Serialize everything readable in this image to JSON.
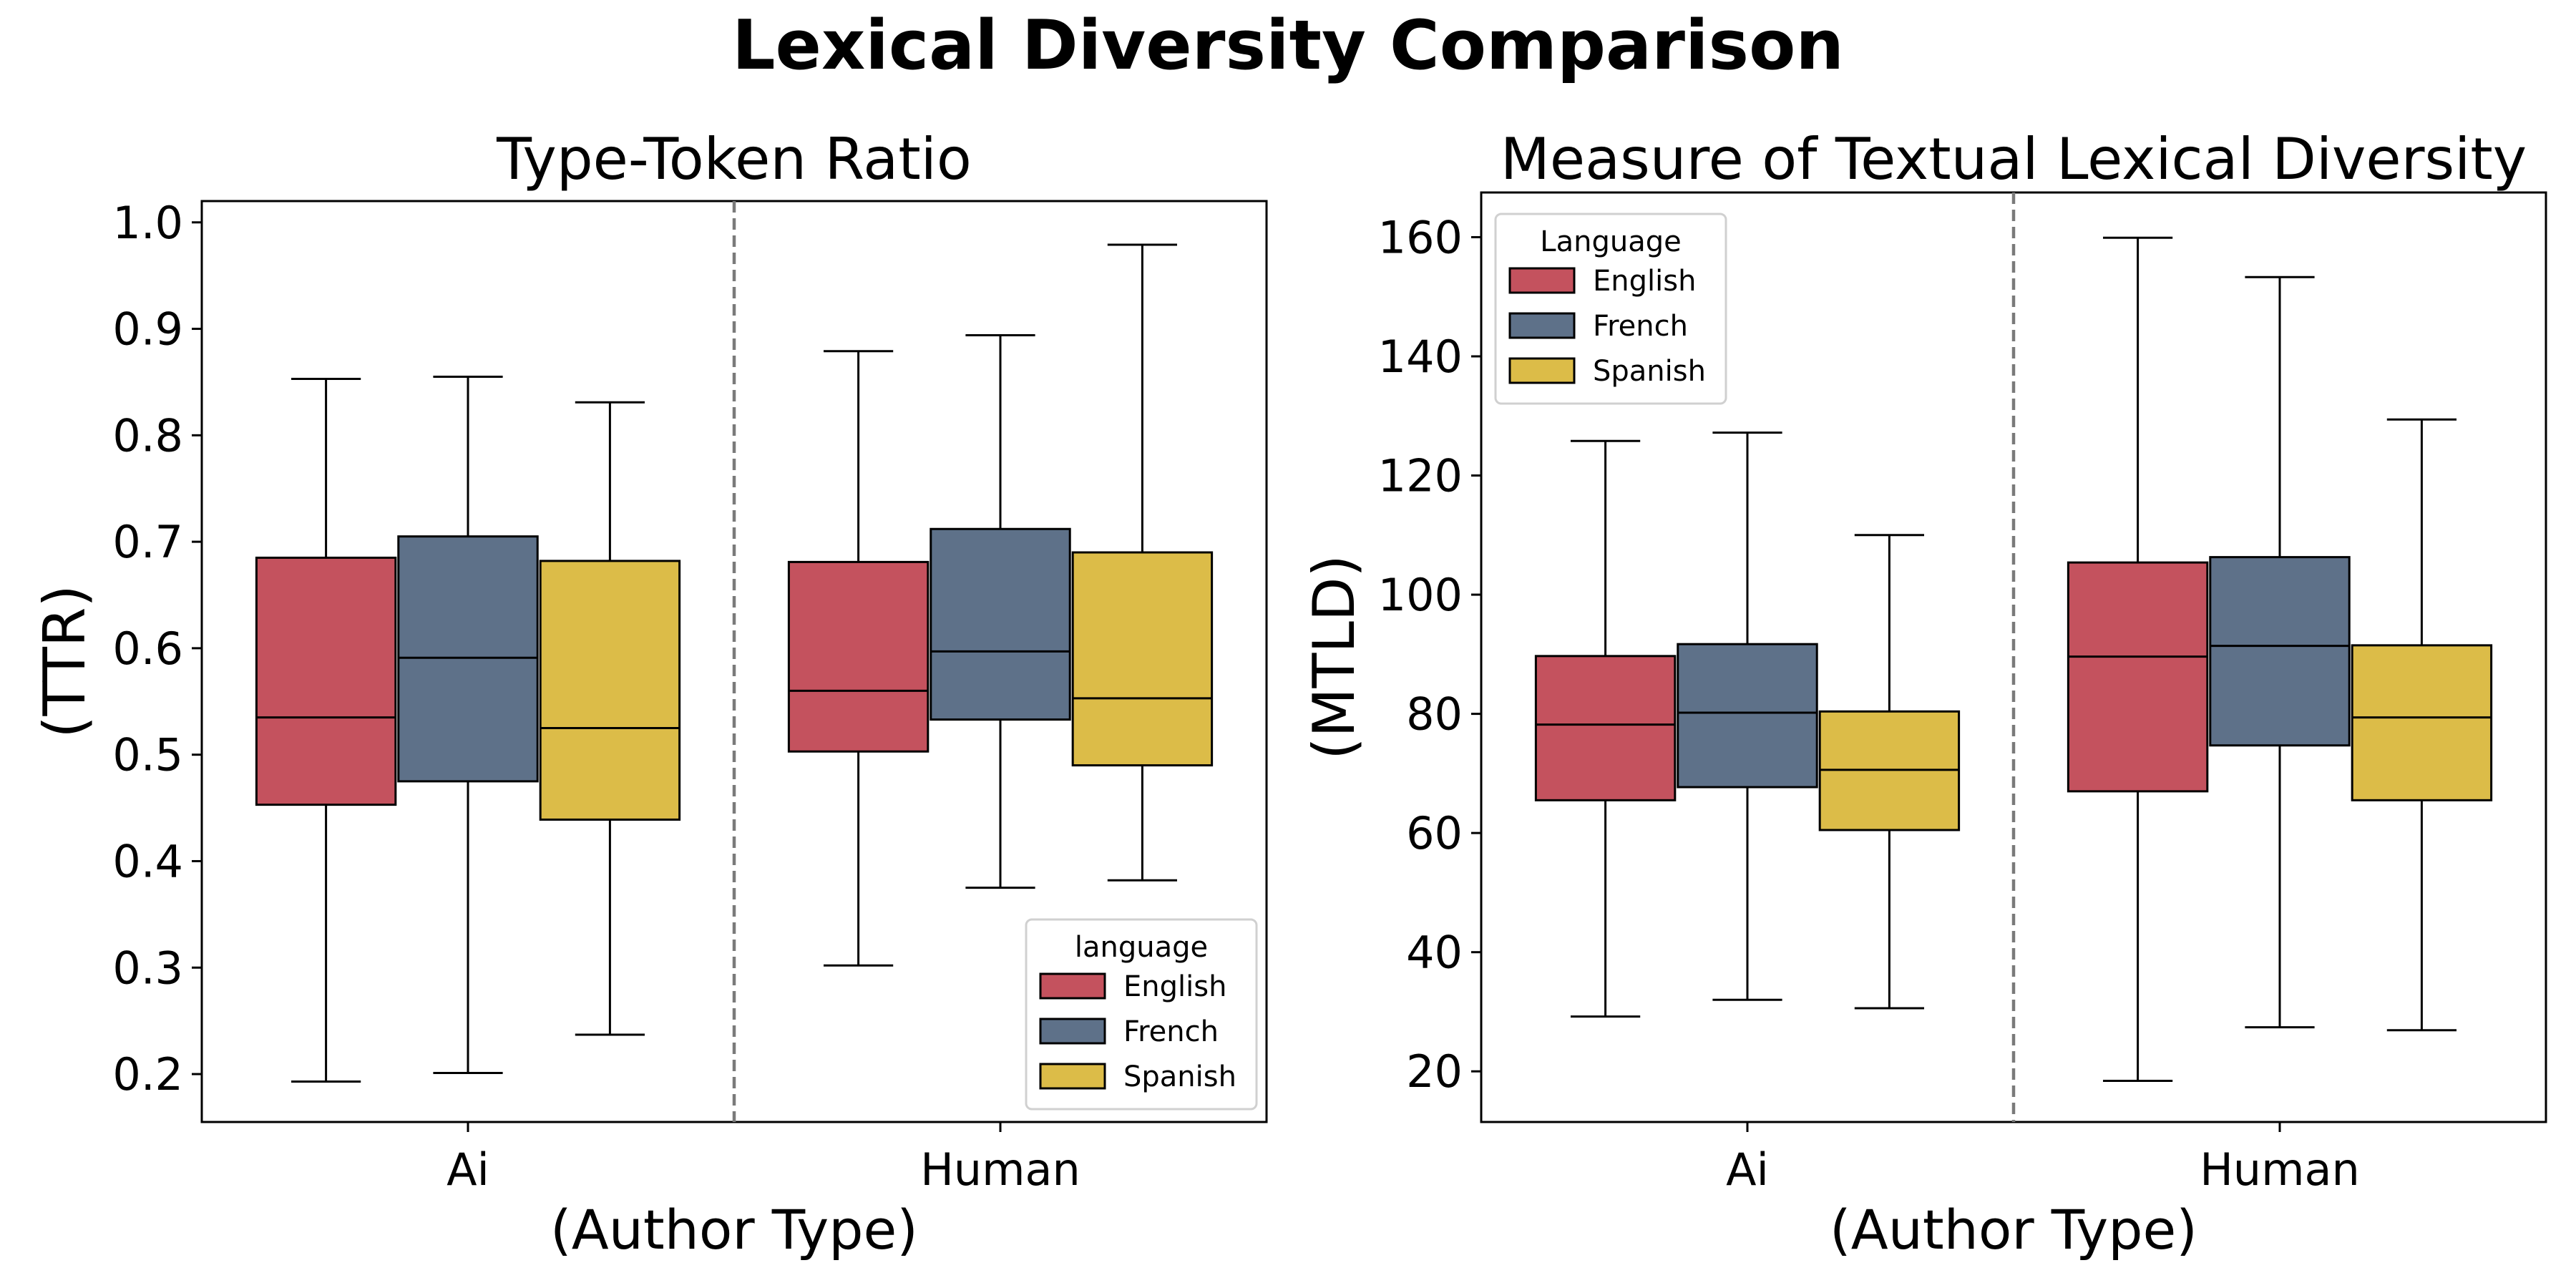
{
  "figure_title": "Lexical Diversity Comparison",
  "chart_data": [
    {
      "type": "box",
      "title": "Type-Token Ratio",
      "xlabel": "(Author Type)",
      "ylabel": "(TTR)",
      "categories": [
        "Ai",
        "Human"
      ],
      "ylim": [
        0.155,
        1.02
      ],
      "yticks": [
        0.2,
        0.3,
        0.4,
        0.5,
        0.6,
        0.7,
        0.8,
        0.9,
        1.0
      ],
      "ytick_labels": [
        "0.2",
        "0.3",
        "0.4",
        "0.5",
        "0.6",
        "0.7",
        "0.8",
        "0.9",
        "1.0"
      ],
      "legend": {
        "title": "language",
        "position": "lower right",
        "entries": [
          "English",
          "French",
          "Spanish"
        ]
      },
      "series": [
        {
          "name": "English",
          "color": "#C4525E",
          "boxes": [
            {
              "whislo": 0.193,
              "q1": 0.453,
              "med": 0.535,
              "q3": 0.685,
              "whishi": 0.853
            },
            {
              "whislo": 0.302,
              "q1": 0.503,
              "med": 0.56,
              "q3": 0.681,
              "whishi": 0.879
            }
          ]
        },
        {
          "name": "French",
          "color": "#5E7189",
          "boxes": [
            {
              "whislo": 0.201,
              "q1": 0.475,
              "med": 0.591,
              "q3": 0.705,
              "whishi": 0.855
            },
            {
              "whislo": 0.375,
              "q1": 0.533,
              "med": 0.597,
              "q3": 0.712,
              "whishi": 0.894
            }
          ]
        },
        {
          "name": "Spanish",
          "color": "#DCBC48",
          "boxes": [
            {
              "whislo": 0.237,
              "q1": 0.439,
              "med": 0.525,
              "q3": 0.682,
              "whishi": 0.831
            },
            {
              "whislo": 0.382,
              "q1": 0.49,
              "med": 0.553,
              "q3": 0.69,
              "whishi": 0.979
            }
          ]
        }
      ]
    },
    {
      "type": "box",
      "title": "Measure of Textual Lexical Diversity",
      "xlabel": "(Author Type)",
      "ylabel": "(MTLD)",
      "categories": [
        "Ai",
        "Human"
      ],
      "ylim": [
        11.5,
        167.5
      ],
      "yticks": [
        20,
        40,
        60,
        80,
        100,
        120,
        140,
        160
      ],
      "ytick_labels": [
        "20",
        "40",
        "60",
        "80",
        "100",
        "120",
        "140",
        "160"
      ],
      "legend": {
        "title": "Language",
        "position": "upper left",
        "entries": [
          "English",
          "French",
          "Spanish"
        ]
      },
      "series": [
        {
          "name": "English",
          "color": "#C4525E",
          "boxes": [
            {
              "whislo": 29.2,
              "q1": 65.5,
              "med": 78.2,
              "q3": 89.7,
              "whishi": 125.8
            },
            {
              "whislo": 18.4,
              "q1": 67.0,
              "med": 89.6,
              "q3": 105.4,
              "whishi": 159.9
            }
          ]
        },
        {
          "name": "French",
          "color": "#5E7189",
          "boxes": [
            {
              "whislo": 32.0,
              "q1": 67.7,
              "med": 80.2,
              "q3": 91.7,
              "whishi": 127.2
            },
            {
              "whislo": 27.4,
              "q1": 74.7,
              "med": 91.4,
              "q3": 106.3,
              "whishi": 153.3
            }
          ]
        },
        {
          "name": "Spanish",
          "color": "#DCBC48",
          "boxes": [
            {
              "whislo": 30.6,
              "q1": 60.5,
              "med": 70.6,
              "q3": 80.4,
              "whishi": 110.0
            },
            {
              "whislo": 26.9,
              "q1": 65.5,
              "med": 79.4,
              "q3": 91.5,
              "whishi": 129.4
            }
          ]
        }
      ]
    }
  ]
}
